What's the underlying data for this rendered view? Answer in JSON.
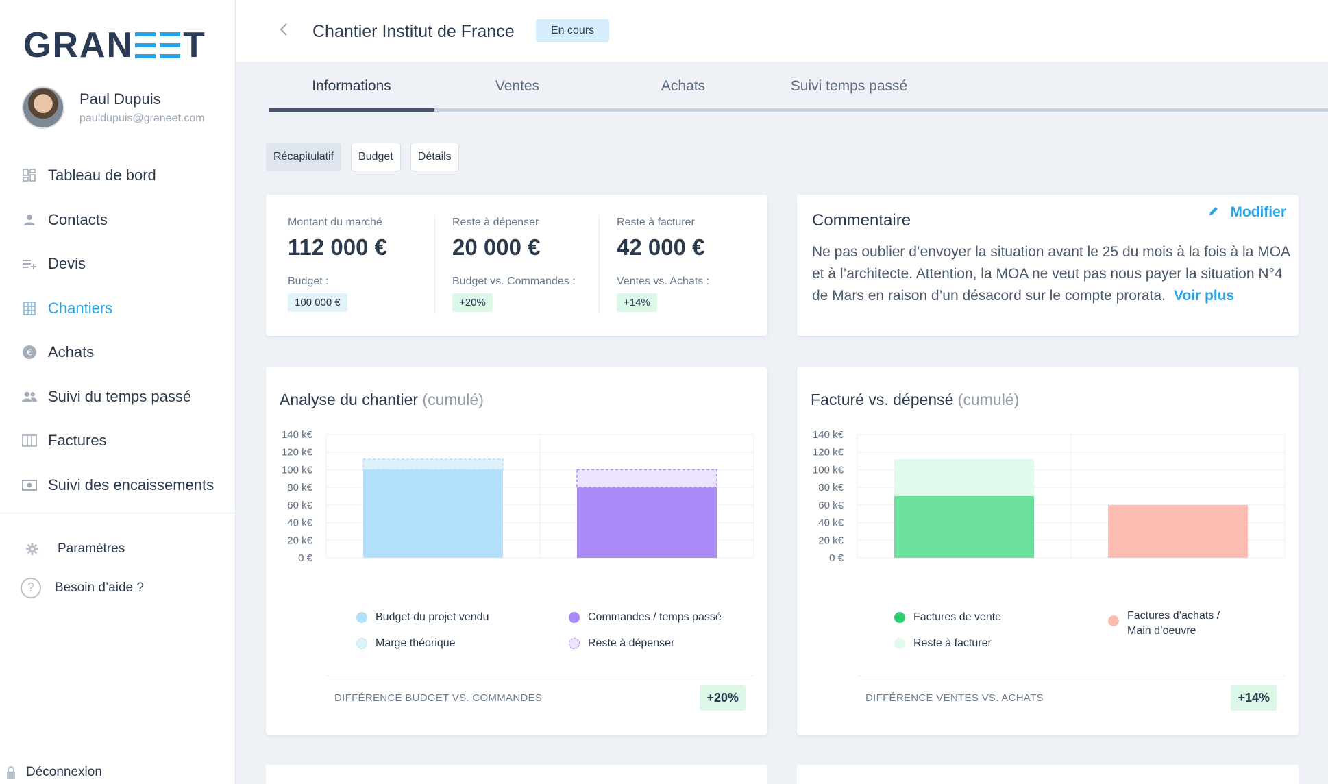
{
  "brand": {
    "left": "GRAN",
    "right": "T"
  },
  "user": {
    "name": "Paul Dupuis",
    "email": "pauldupuis@graneet.com"
  },
  "nav": [
    {
      "label": "Tableau de bord",
      "icon": "dashboard-icon"
    },
    {
      "label": "Contacts",
      "icon": "person-icon"
    },
    {
      "label": "Devis",
      "icon": "list-add-icon"
    },
    {
      "label": "Chantiers",
      "icon": "building-icon",
      "active": true
    },
    {
      "label": "Achats",
      "icon": "euro-icon"
    },
    {
      "label": "Suivi du temps passé",
      "icon": "people-icon"
    },
    {
      "label": "Factures",
      "icon": "columns-icon"
    },
    {
      "label": "Suivi des encaissements",
      "icon": "banknote-icon"
    }
  ],
  "bottom_nav": {
    "settings": "Paramètres",
    "help": "Besoin d’aide ?",
    "logout": "Déconnexion"
  },
  "header": {
    "title": "Chantier Institut de France",
    "status": "En cours"
  },
  "tabs": [
    "Informations",
    "Ventes",
    "Achats",
    "Suivi temps passé"
  ],
  "subtabs": [
    "Récapitulatif",
    "Budget",
    "Détails"
  ],
  "summary": [
    {
      "label": "Montant du marché",
      "value": "112 000 €",
      "sub": "Budget :",
      "badge": "100 000 €"
    },
    {
      "label": "Reste à dépenser",
      "value": "20 000 €",
      "sub": "Budget vs. Commandes :",
      "badge": "+20%"
    },
    {
      "label": "Reste à facturer",
      "value": "42 000 €",
      "sub": "Ventes vs. Achats :",
      "badge": "+14%"
    }
  ],
  "comment": {
    "title": "Commentaire",
    "modify": "Modifier",
    "text": "Ne pas oublier d’envoyer la situation avant le 25 du mois à la fois à la MOA et à l’architecte. Attention, la MOA ne veut pas nous payer la situation N°4 de Mars en raison d’un désacord sur le compte prorata.",
    "more": "Voir plus"
  },
  "colors": {
    "accent": "#2aa3e8",
    "budget": "#b3e0fb",
    "marge": "#ddf1fd",
    "commandes": "#a98af7",
    "reste_depenser": "#ece4fd",
    "ventes": "#6be19d",
    "reste_facturer": "#e0fbeb",
    "achats": "#fdbcb1"
  },
  "chart_data": [
    {
      "type": "bar",
      "title": "Analyse du chantier",
      "title_suffix": "(cumulé)",
      "yticks": [
        "140 k€",
        "120 k€",
        "100 k€",
        "80 k€",
        "60 k€",
        "40 k€",
        "20 k€",
        "0 €"
      ],
      "ylim": [
        0,
        140
      ],
      "unit": "k€",
      "bars": [
        {
          "segments": [
            {
              "name": "Budget du projet vendu",
              "value": 100
            },
            {
              "name": "Marge théorique",
              "value": 12
            }
          ]
        },
        {
          "segments": [
            {
              "name": "Commandes / temps passé",
              "value": 80
            },
            {
              "name": "Reste à dépenser",
              "value": 20
            }
          ]
        }
      ],
      "legend": [
        "Budget du projet vendu",
        "Commandes / temps passé",
        "Marge théorique",
        "Reste à dépenser"
      ],
      "footer_label": "DIFFÉRENCE BUDGET VS. COMMANDES",
      "footer_value": "+20%"
    },
    {
      "type": "bar",
      "title": "Facturé vs. dépensé",
      "title_suffix": "(cumulé)",
      "yticks": [
        "140 k€",
        "120 k€",
        "100 k€",
        "80 k€",
        "60 k€",
        "40 k€",
        "20 k€",
        "0 €"
      ],
      "ylim": [
        0,
        140
      ],
      "unit": "k€",
      "bars": [
        {
          "segments": [
            {
              "name": "Factures de vente",
              "value": 70
            },
            {
              "name": "Reste à facturer",
              "value": 42
            }
          ]
        },
        {
          "segments": [
            {
              "name": "Factures d’achats / Main d’oeuvre",
              "value": 60
            }
          ]
        }
      ],
      "legend": [
        "Factures de vente",
        "Factures d’achats / Main d’oeuvre",
        "Reste à facturer"
      ],
      "footer_label": "DIFFÉRENCE VENTES VS. ACHATS",
      "footer_value": "+14%"
    }
  ]
}
